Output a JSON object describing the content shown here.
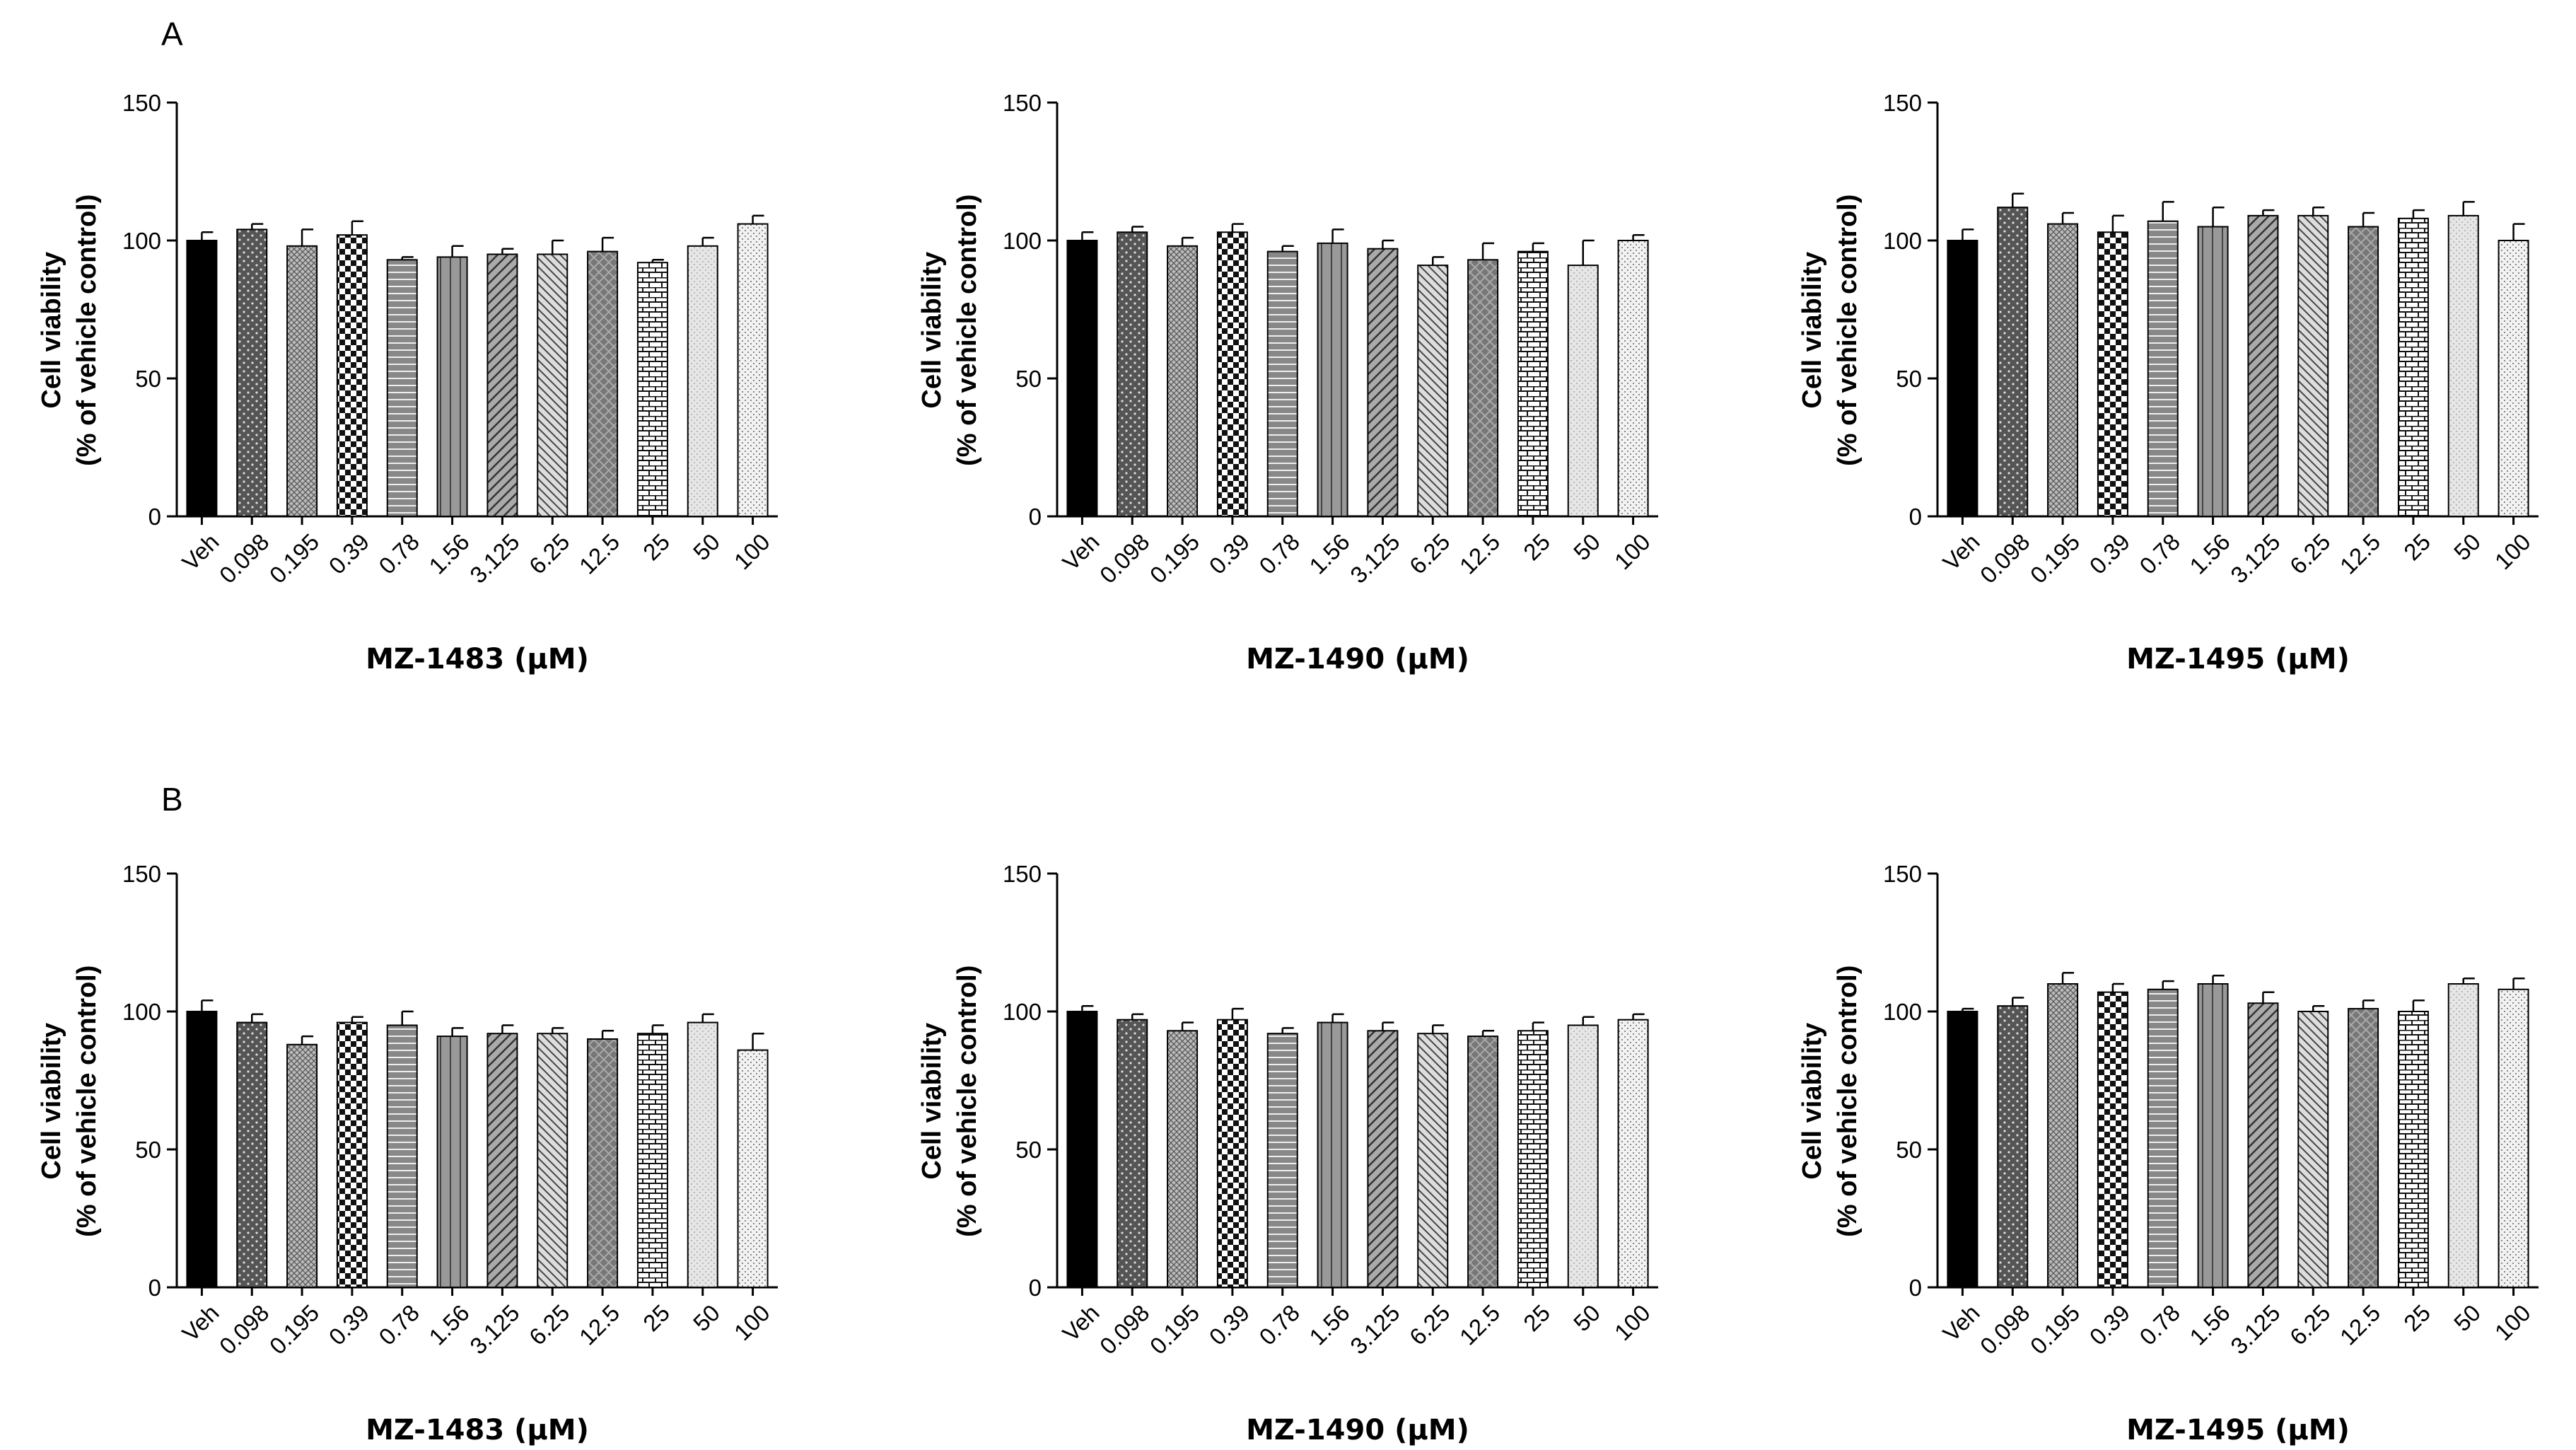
{
  "panels": [
    {
      "letter": "A"
    },
    {
      "letter": "B"
    }
  ],
  "chart_data": [
    {
      "type": "bar",
      "panel": "A",
      "xlabel": "MZ-1483 (μM)",
      "ylabel": [
        "Cell viability",
        "(% of vehicle control)"
      ],
      "categories": [
        "Veh",
        "0.098",
        "0.195",
        "0.39",
        "0.78",
        "1.56",
        "3.125",
        "6.25",
        "12.5",
        "25",
        "50",
        "100"
      ],
      "values": [
        100,
        104,
        98,
        102,
        93,
        94,
        95,
        95,
        96,
        92,
        98,
        106
      ],
      "errors": [
        3,
        2,
        6,
        5,
        1,
        4,
        2,
        5,
        5,
        1,
        3,
        3
      ],
      "ylim": [
        0,
        150
      ],
      "yticks": [
        0,
        50,
        100,
        150
      ]
    },
    {
      "type": "bar",
      "panel": "A",
      "xlabel": "MZ-1490 (μM)",
      "ylabel": [
        "Cell viability",
        "(% of vehicle control)"
      ],
      "categories": [
        "Veh",
        "0.098",
        "0.195",
        "0.39",
        "0.78",
        "1.56",
        "3.125",
        "6.25",
        "12.5",
        "25",
        "50",
        "100"
      ],
      "values": [
        100,
        103,
        98,
        103,
        96,
        99,
        97,
        91,
        93,
        96,
        91,
        100
      ],
      "errors": [
        3,
        2,
        3,
        3,
        2,
        5,
        3,
        3,
        6,
        3,
        9,
        2
      ],
      "ylim": [
        0,
        150
      ],
      "yticks": [
        0,
        50,
        100,
        150
      ]
    },
    {
      "type": "bar",
      "panel": "A",
      "xlabel": "MZ-1495 (μM)",
      "ylabel": [
        "Cell viability",
        "(% of vehicle control)"
      ],
      "categories": [
        "Veh",
        "0.098",
        "0.195",
        "0.39",
        "0.78",
        "1.56",
        "3.125",
        "6.25",
        "12.5",
        "25",
        "50",
        "100"
      ],
      "values": [
        100,
        112,
        106,
        103,
        107,
        105,
        109,
        109,
        105,
        108,
        109,
        100
      ],
      "errors": [
        4,
        5,
        4,
        6,
        7,
        7,
        2,
        3,
        5,
        3,
        5,
        6
      ],
      "ylim": [
        0,
        150
      ],
      "yticks": [
        0,
        50,
        100,
        150
      ]
    },
    {
      "type": "bar",
      "panel": "B",
      "xlabel": "MZ-1483 (μM)",
      "ylabel": [
        "Cell viability",
        "(% of vehicle control)"
      ],
      "categories": [
        "Veh",
        "0.098",
        "0.195",
        "0.39",
        "0.78",
        "1.56",
        "3.125",
        "6.25",
        "12.5",
        "25",
        "50",
        "100"
      ],
      "values": [
        100,
        96,
        88,
        96,
        95,
        91,
        92,
        92,
        90,
        92,
        96,
        86
      ],
      "errors": [
        4,
        3,
        3,
        2,
        5,
        3,
        3,
        2,
        3,
        3,
        3,
        6
      ],
      "ylim": [
        0,
        150
      ],
      "yticks": [
        0,
        50,
        100,
        150
      ]
    },
    {
      "type": "bar",
      "panel": "B",
      "xlabel": "MZ-1490 (μM)",
      "ylabel": [
        "Cell viability",
        "(% of vehicle control)"
      ],
      "categories": [
        "Veh",
        "0.098",
        "0.195",
        "0.39",
        "0.78",
        "1.56",
        "3.125",
        "6.25",
        "12.5",
        "25",
        "50",
        "100"
      ],
      "values": [
        100,
        97,
        93,
        97,
        92,
        96,
        93,
        92,
        91,
        93,
        95,
        97
      ],
      "errors": [
        2,
        2,
        3,
        4,
        2,
        3,
        3,
        3,
        2,
        3,
        3,
        2
      ],
      "ylim": [
        0,
        150
      ],
      "yticks": [
        0,
        50,
        100,
        150
      ]
    },
    {
      "type": "bar",
      "panel": "B",
      "xlabel": "MZ-1495 (μM)",
      "ylabel": [
        "Cell viability",
        "(% of vehicle control)"
      ],
      "categories": [
        "Veh",
        "0.098",
        "0.195",
        "0.39",
        "0.78",
        "1.56",
        "3.125",
        "6.25",
        "12.5",
        "25",
        "50",
        "100"
      ],
      "values": [
        100,
        102,
        110,
        107,
        108,
        110,
        103,
        100,
        101,
        100,
        110,
        108
      ],
      "errors": [
        1,
        3,
        4,
        3,
        3,
        3,
        4,
        2,
        3,
        4,
        2,
        4
      ],
      "ylim": [
        0,
        150
      ],
      "yticks": [
        0,
        50,
        100,
        150
      ]
    }
  ]
}
